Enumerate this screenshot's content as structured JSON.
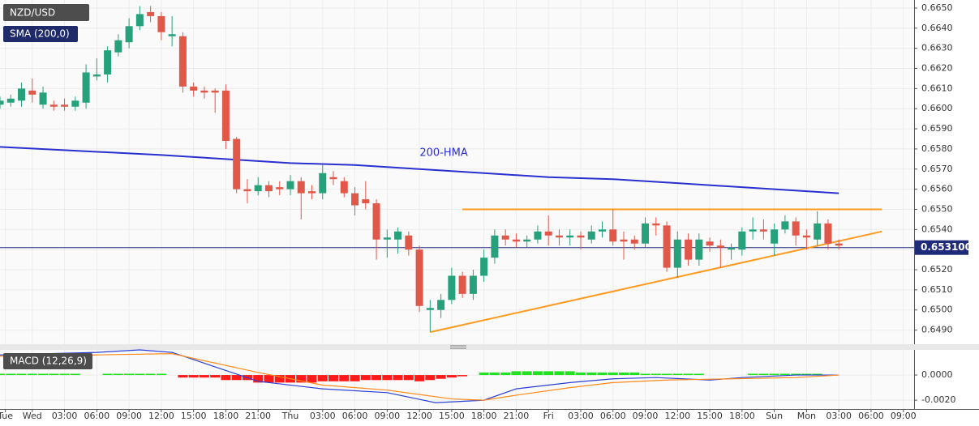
{
  "chart_data": {
    "type": "candlestick",
    "title": "NZD/USD",
    "indicator_label": "SMA (200,0)",
    "up_color": "#26a17b",
    "down_color": "#e0584a",
    "x": [
      -3,
      -2,
      -1,
      0,
      1,
      2,
      3,
      4,
      5,
      6,
      7,
      8,
      9,
      10,
      11,
      12,
      13,
      14,
      15,
      16,
      17,
      18,
      19,
      20,
      21,
      22,
      23,
      24,
      25,
      26,
      27,
      28,
      29,
      30,
      31,
      32,
      33,
      34,
      35,
      36,
      37,
      38,
      39,
      40,
      41,
      42,
      43,
      44,
      45,
      46,
      47,
      48,
      49,
      50,
      51,
      52,
      53,
      54,
      55,
      56,
      57,
      58,
      59,
      60,
      61,
      62,
      63,
      64,
      65,
      66,
      67,
      68,
      69,
      70,
      71,
      72,
      73,
      74,
      75
    ],
    "open": [
      0.6602,
      0.6603,
      0.6604,
      0.6609,
      0.6602,
      0.6602,
      0.6602,
      0.6601,
      0.6603,
      0.6616,
      0.6617,
      0.6628,
      0.6633,
      0.6641,
      0.6648,
      0.6646,
      0.6636,
      0.6636,
      0.6611,
      0.6609,
      0.6609,
      0.6609,
      0.6585,
      0.656,
      0.6559,
      0.6562,
      0.6561,
      0.656,
      0.6564,
      0.6559,
      0.6558,
      0.6566,
      0.6564,
      0.6558,
      0.6555,
      0.6553,
      0.6535,
      0.6535,
      0.6537,
      0.653,
      0.65,
      0.65,
      0.6505,
      0.6517,
      0.6508,
      0.6517,
      0.6526,
      0.6537,
      0.6535,
      0.6534,
      0.6535,
      0.6539,
      0.6537,
      0.6536,
      0.6537,
      0.6535,
      0.6539,
      0.654,
      0.6535,
      0.6535,
      0.6533,
      0.6543,
      0.6542,
      0.6521,
      0.6535,
      0.6525,
      0.6534,
      0.6532,
      0.653,
      0.653,
      0.6539,
      0.654,
      0.6533,
      0.654,
      0.6544,
      0.6537,
      0.6535,
      0.6543,
      0.6533
    ],
    "high": [
      0.6606,
      0.6607,
      0.6613,
      0.6615,
      0.6611,
      0.6604,
      0.6605,
      0.6606,
      0.6622,
      0.6625,
      0.6631,
      0.6637,
      0.6645,
      0.6651,
      0.6651,
      0.6648,
      0.6646,
      0.6638,
      0.6613,
      0.6611,
      0.661,
      0.6612,
      0.6586,
      0.6565,
      0.6566,
      0.6564,
      0.6564,
      0.6567,
      0.6566,
      0.6562,
      0.6572,
      0.6569,
      0.6566,
      0.6561,
      0.6564,
      0.6555,
      0.654,
      0.6541,
      0.6539,
      0.6532,
      0.6505,
      0.6508,
      0.6521,
      0.6519,
      0.652,
      0.653,
      0.654,
      0.654,
      0.6538,
      0.6537,
      0.6542,
      0.6547,
      0.654,
      0.654,
      0.6539,
      0.6542,
      0.6544,
      0.655,
      0.6539,
      0.6537,
      0.6546,
      0.6546,
      0.6544,
      0.6539,
      0.6538,
      0.6538,
      0.6536,
      0.6535,
      0.6533,
      0.6541,
      0.6546,
      0.6545,
      0.6543,
      0.6547,
      0.6546,
      0.654,
      0.6549,
      0.6545,
      0.6535
    ],
    "low": [
      0.66,
      0.6601,
      0.6601,
      0.6603,
      0.66,
      0.6599,
      0.6599,
      0.6599,
      0.66,
      0.6614,
      0.6613,
      0.6626,
      0.663,
      0.6639,
      0.6643,
      0.6634,
      0.6631,
      0.6608,
      0.6606,
      0.6605,
      0.6598,
      0.658,
      0.6558,
      0.6553,
      0.6557,
      0.6556,
      0.6557,
      0.6557,
      0.6545,
      0.6555,
      0.6555,
      0.6562,
      0.6556,
      0.6547,
      0.655,
      0.6525,
      0.6526,
      0.6528,
      0.6527,
      0.6499,
      0.6489,
      0.6496,
      0.6503,
      0.6506,
      0.6505,
      0.6514,
      0.6523,
      0.6532,
      0.6531,
      0.6531,
      0.6533,
      0.6532,
      0.6532,
      0.6532,
      0.653,
      0.6533,
      0.6536,
      0.6532,
      0.6525,
      0.653,
      0.6531,
      0.6537,
      0.6519,
      0.6516,
      0.6522,
      0.6522,
      0.6529,
      0.6521,
      0.6525,
      0.6527,
      0.6535,
      0.6535,
      0.6527,
      0.6538,
      0.6532,
      0.653,
      0.6532,
      0.653,
      0.653
    ],
    "close": [
      0.6604,
      0.6605,
      0.661,
      0.6607,
      0.6608,
      0.6601,
      0.6601,
      0.6604,
      0.6618,
      0.6617,
      0.6629,
      0.6634,
      0.6641,
      0.6647,
      0.6646,
      0.6638,
      0.6637,
      0.6611,
      0.6609,
      0.6608,
      0.6608,
      0.6584,
      0.656,
      0.6559,
      0.6562,
      0.6559,
      0.656,
      0.6564,
      0.6558,
      0.6558,
      0.6568,
      0.6565,
      0.6558,
      0.6552,
      0.6553,
      0.6535,
      0.6536,
      0.6539,
      0.653,
      0.6502,
      0.6501,
      0.6505,
      0.6517,
      0.6508,
      0.6517,
      0.6526,
      0.6537,
      0.6535,
      0.6534,
      0.6535,
      0.6539,
      0.6537,
      0.6536,
      0.6537,
      0.6536,
      0.6539,
      0.654,
      0.6534,
      0.6534,
      0.6533,
      0.6543,
      0.6542,
      0.6521,
      0.6535,
      0.6525,
      0.6535,
      0.6532,
      0.6531,
      0.6531,
      0.6539,
      0.654,
      0.6539,
      0.654,
      0.6544,
      0.6537,
      0.6536,
      0.6543,
      0.6533,
      0.6532
    ],
    "xlim": [
      -3,
      82
    ],
    "xticks": [
      {
        "value": -2.5,
        "label": "Tue"
      },
      {
        "value": 0,
        "label": "Wed"
      },
      {
        "value": 3,
        "label": "03:00"
      },
      {
        "value": 6,
        "label": "06:00"
      },
      {
        "value": 9,
        "label": "09:00"
      },
      {
        "value": 12,
        "label": "12:00"
      },
      {
        "value": 15,
        "label": "15:00"
      },
      {
        "value": 18,
        "label": "18:00"
      },
      {
        "value": 21,
        "label": "21:00"
      },
      {
        "value": 24,
        "label": "Thu"
      },
      {
        "value": 27,
        "label": "03:00"
      },
      {
        "value": 30,
        "label": "06:00"
      },
      {
        "value": 33,
        "label": "09:00"
      },
      {
        "value": 36,
        "label": "12:00"
      },
      {
        "value": 39,
        "label": "15:00"
      },
      {
        "value": 42,
        "label": "18:00"
      },
      {
        "value": 45,
        "label": "21:00"
      },
      {
        "value": 48,
        "label": "Fri"
      },
      {
        "value": 51,
        "label": "03:00"
      },
      {
        "value": 54,
        "label": "06:00"
      },
      {
        "value": 57,
        "label": "09:00"
      },
      {
        "value": 60,
        "label": "12:00"
      },
      {
        "value": 63,
        "label": "15:00"
      },
      {
        "value": 66,
        "label": "18:00"
      },
      {
        "value": 69,
        "label": "Sun"
      },
      {
        "value": 72,
        "label": "Mon"
      },
      {
        "value": 75,
        "label": "03:00"
      },
      {
        "value": 78,
        "label": "06:00"
      },
      {
        "value": 81,
        "label": "09:00"
      }
    ],
    "ylim": [
      0.6483,
      0.6654
    ],
    "yticks": [
      {
        "value": 0.649,
        "label": "0.6490"
      },
      {
        "value": 0.65,
        "label": "0.6500"
      },
      {
        "value": 0.651,
        "label": "0.6510"
      },
      {
        "value": 0.652,
        "label": "0.6520"
      },
      {
        "value": 0.653,
        "label": "0.6530"
      },
      {
        "value": 0.654,
        "label": "0.6540"
      },
      {
        "value": 0.655,
        "label": "0.6550"
      },
      {
        "value": 0.656,
        "label": "0.6560"
      },
      {
        "value": 0.657,
        "label": "0.6570"
      },
      {
        "value": 0.658,
        "label": "0.6580"
      },
      {
        "value": 0.659,
        "label": "0.6590"
      },
      {
        "value": 0.66,
        "label": "0.6600"
      },
      {
        "value": 0.661,
        "label": "0.6610"
      },
      {
        "value": 0.662,
        "label": "0.6620"
      },
      {
        "value": 0.663,
        "label": "0.6630"
      },
      {
        "value": 0.664,
        "label": "0.6640"
      },
      {
        "value": 0.665,
        "label": "0.6650"
      }
    ],
    "grid": true,
    "series": [
      {
        "name": "200-HMA",
        "color": "#2a2fcf",
        "x": [
          -3,
          12,
          24,
          30,
          36,
          42,
          48,
          54,
          60,
          66,
          72,
          75
        ],
        "values": [
          0.6581,
          0.6577,
          0.6573,
          0.6572,
          0.657,
          0.6568,
          0.6566,
          0.6565,
          0.6563,
          0.6561,
          0.6559,
          0.6558
        ]
      }
    ],
    "trendlines": [
      {
        "color": "#ff9a1f",
        "x": [
          37,
          79
        ],
        "values": [
          0.6489,
          0.6539
        ]
      },
      {
        "color": "#ff9a1f",
        "x": [
          40,
          79
        ],
        "values": [
          0.655,
          0.655
        ]
      }
    ],
    "last_price": {
      "value": 0.6531,
      "label": "0.653100",
      "color": "#1f2a78"
    },
    "macd": {
      "title": "MACD (12,26,9)",
      "ylim": [
        -0.0027,
        0.002
      ],
      "yticks": [
        {
          "value": 0,
          "label": "0.0000"
        },
        {
          "value": -0.002,
          "label": "-0.0020"
        }
      ],
      "series": [
        {
          "color": "#2a3fd6",
          "x": [
            -3,
            6,
            10,
            13,
            21,
            27,
            33,
            37.5,
            42,
            45,
            50,
            54,
            58,
            63,
            66,
            71,
            75
          ],
          "values": [
            0.0016,
            0.0018,
            0.002,
            0.0018,
            -0.0005,
            -0.0011,
            -0.0014,
            -0.0022,
            -0.002,
            -0.0011,
            -0.0006,
            -0.0003,
            -0.0002,
            -0.0004,
            -0.0002,
            0,
            0
          ]
        },
        {
          "color": "#ff8a1a",
          "x": [
            -3,
            6,
            13,
            21,
            27,
            33,
            39,
            42,
            45,
            50,
            54,
            59,
            65,
            71,
            75
          ],
          "values": [
            0.0015,
            0.0016,
            0.0017,
            0.0002,
            -0.0008,
            -0.0012,
            -0.0019,
            -0.002,
            -0.0016,
            -0.001,
            -0.0006,
            -0.0004,
            -0.0003,
            -0.0002,
            0
          ]
        }
      ],
      "histogram": {
        "up_color": "#22e022",
        "down_color": "#ff1a1a",
        "values": [
          0.0001,
          0.0001,
          0.0001,
          0.0001,
          0.0001,
          0.0001,
          0.0001,
          0.0001,
          0,
          0,
          0.0001,
          0.0001,
          0.0001,
          0.0001,
          0.0001,
          0.0001,
          0,
          -0.0002,
          -0.0002,
          -0.0002,
          -0.0002,
          -0.0004,
          -0.0004,
          -0.0004,
          -0.0006,
          -0.0006,
          -0.0006,
          -0.0006,
          -0.0006,
          -0.0006,
          -0.0005,
          -0.0005,
          -0.0005,
          -0.0005,
          -0.0004,
          -0.0004,
          -0.0004,
          -0.0004,
          -0.0004,
          -0.0005,
          -0.0004,
          -0.0003,
          -0.0002,
          -0.0001,
          0,
          0.0002,
          0.0002,
          0.0002,
          0.0003,
          0.0003,
          0.0003,
          0.0003,
          0.0003,
          0.0003,
          0.0002,
          0.0002,
          0.0002,
          0.0002,
          0.0002,
          0.0002,
          0.0001,
          0.0001,
          0.0001,
          0.0001,
          0.0001,
          0.0001,
          0,
          0,
          0,
          0,
          0.0001,
          0.0001,
          0.0001,
          0.0001,
          0.0001,
          0.0001,
          0.0001,
          0,
          0
        ]
      }
    }
  }
}
